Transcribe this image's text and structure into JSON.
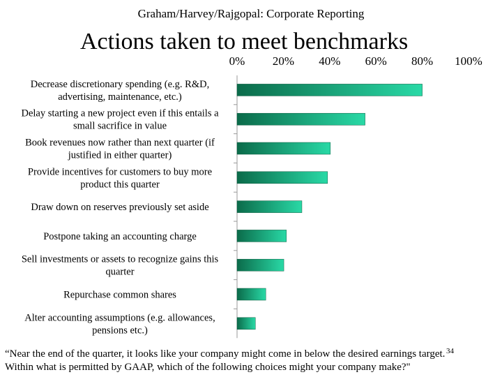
{
  "header": "Graham/Harvey/Rajgopal: Corporate Reporting",
  "slide_number": "34",
  "question_lines": [
    "“Near the end of the quarter, it looks like your company might come in below the desired earnings target.",
    "Within what is permitted by GAAP, which of the following choices might your company make?\""
  ],
  "colors": {
    "bar_dark": "#0b6b4a",
    "bar_light": "#29d9a6",
    "axis": "#999999"
  },
  "chart_data": {
    "type": "bar",
    "orientation": "horizontal",
    "title": "Actions taken to meet benchmarks",
    "xlim": [
      0,
      100
    ],
    "x_ticks": [
      "0%",
      "20%",
      "40%",
      "60%",
      "80%",
      "100%"
    ],
    "categories": [
      [
        "Decrease discretionary spending (e.g. R&D,",
        "advertising, maintenance,  etc.)"
      ],
      [
        "Delay starting a new project even if this entails a",
        "small sacrifice in value"
      ],
      [
        "Book revenues now rather than next quarter (if",
        "justified in either quarter)"
      ],
      [
        "Provide incentives for customers to buy more",
        "product this quarter"
      ],
      [
        "Draw down on reserves previously set aside"
      ],
      [
        "Postpone taking an accounting charge"
      ],
      [
        "Sell investments or assets to recognize gains this",
        "quarter"
      ],
      [
        "Repurchase common shares"
      ],
      [
        "Alter accounting assumptions (e.g. allowances,",
        "pensions etc.)"
      ]
    ],
    "values": [
      80,
      55.3,
      40.3,
      39.1,
      28,
      21.3,
      20.2,
      12.4,
      7.9
    ]
  }
}
